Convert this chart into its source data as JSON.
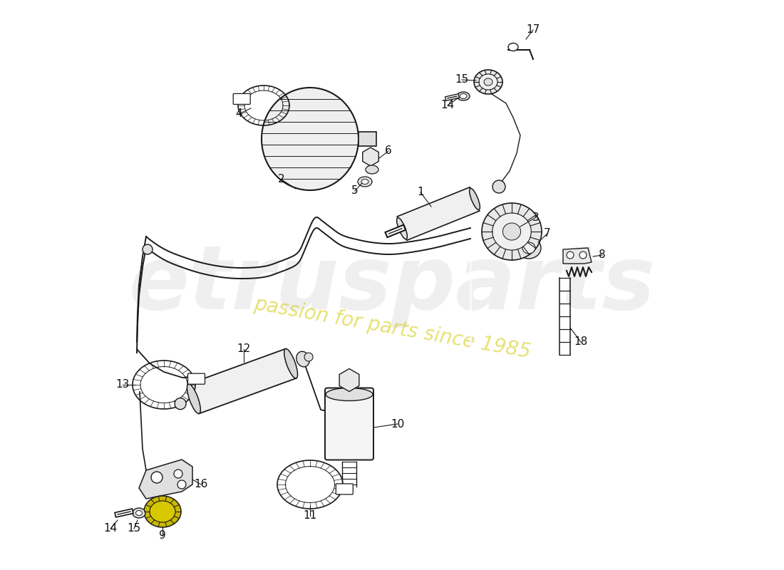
{
  "bg": "#ffffff",
  "lc": "#1a1a1a",
  "watermark": "etrusparts",
  "watermark_sub": "passion for parts since 1985"
}
